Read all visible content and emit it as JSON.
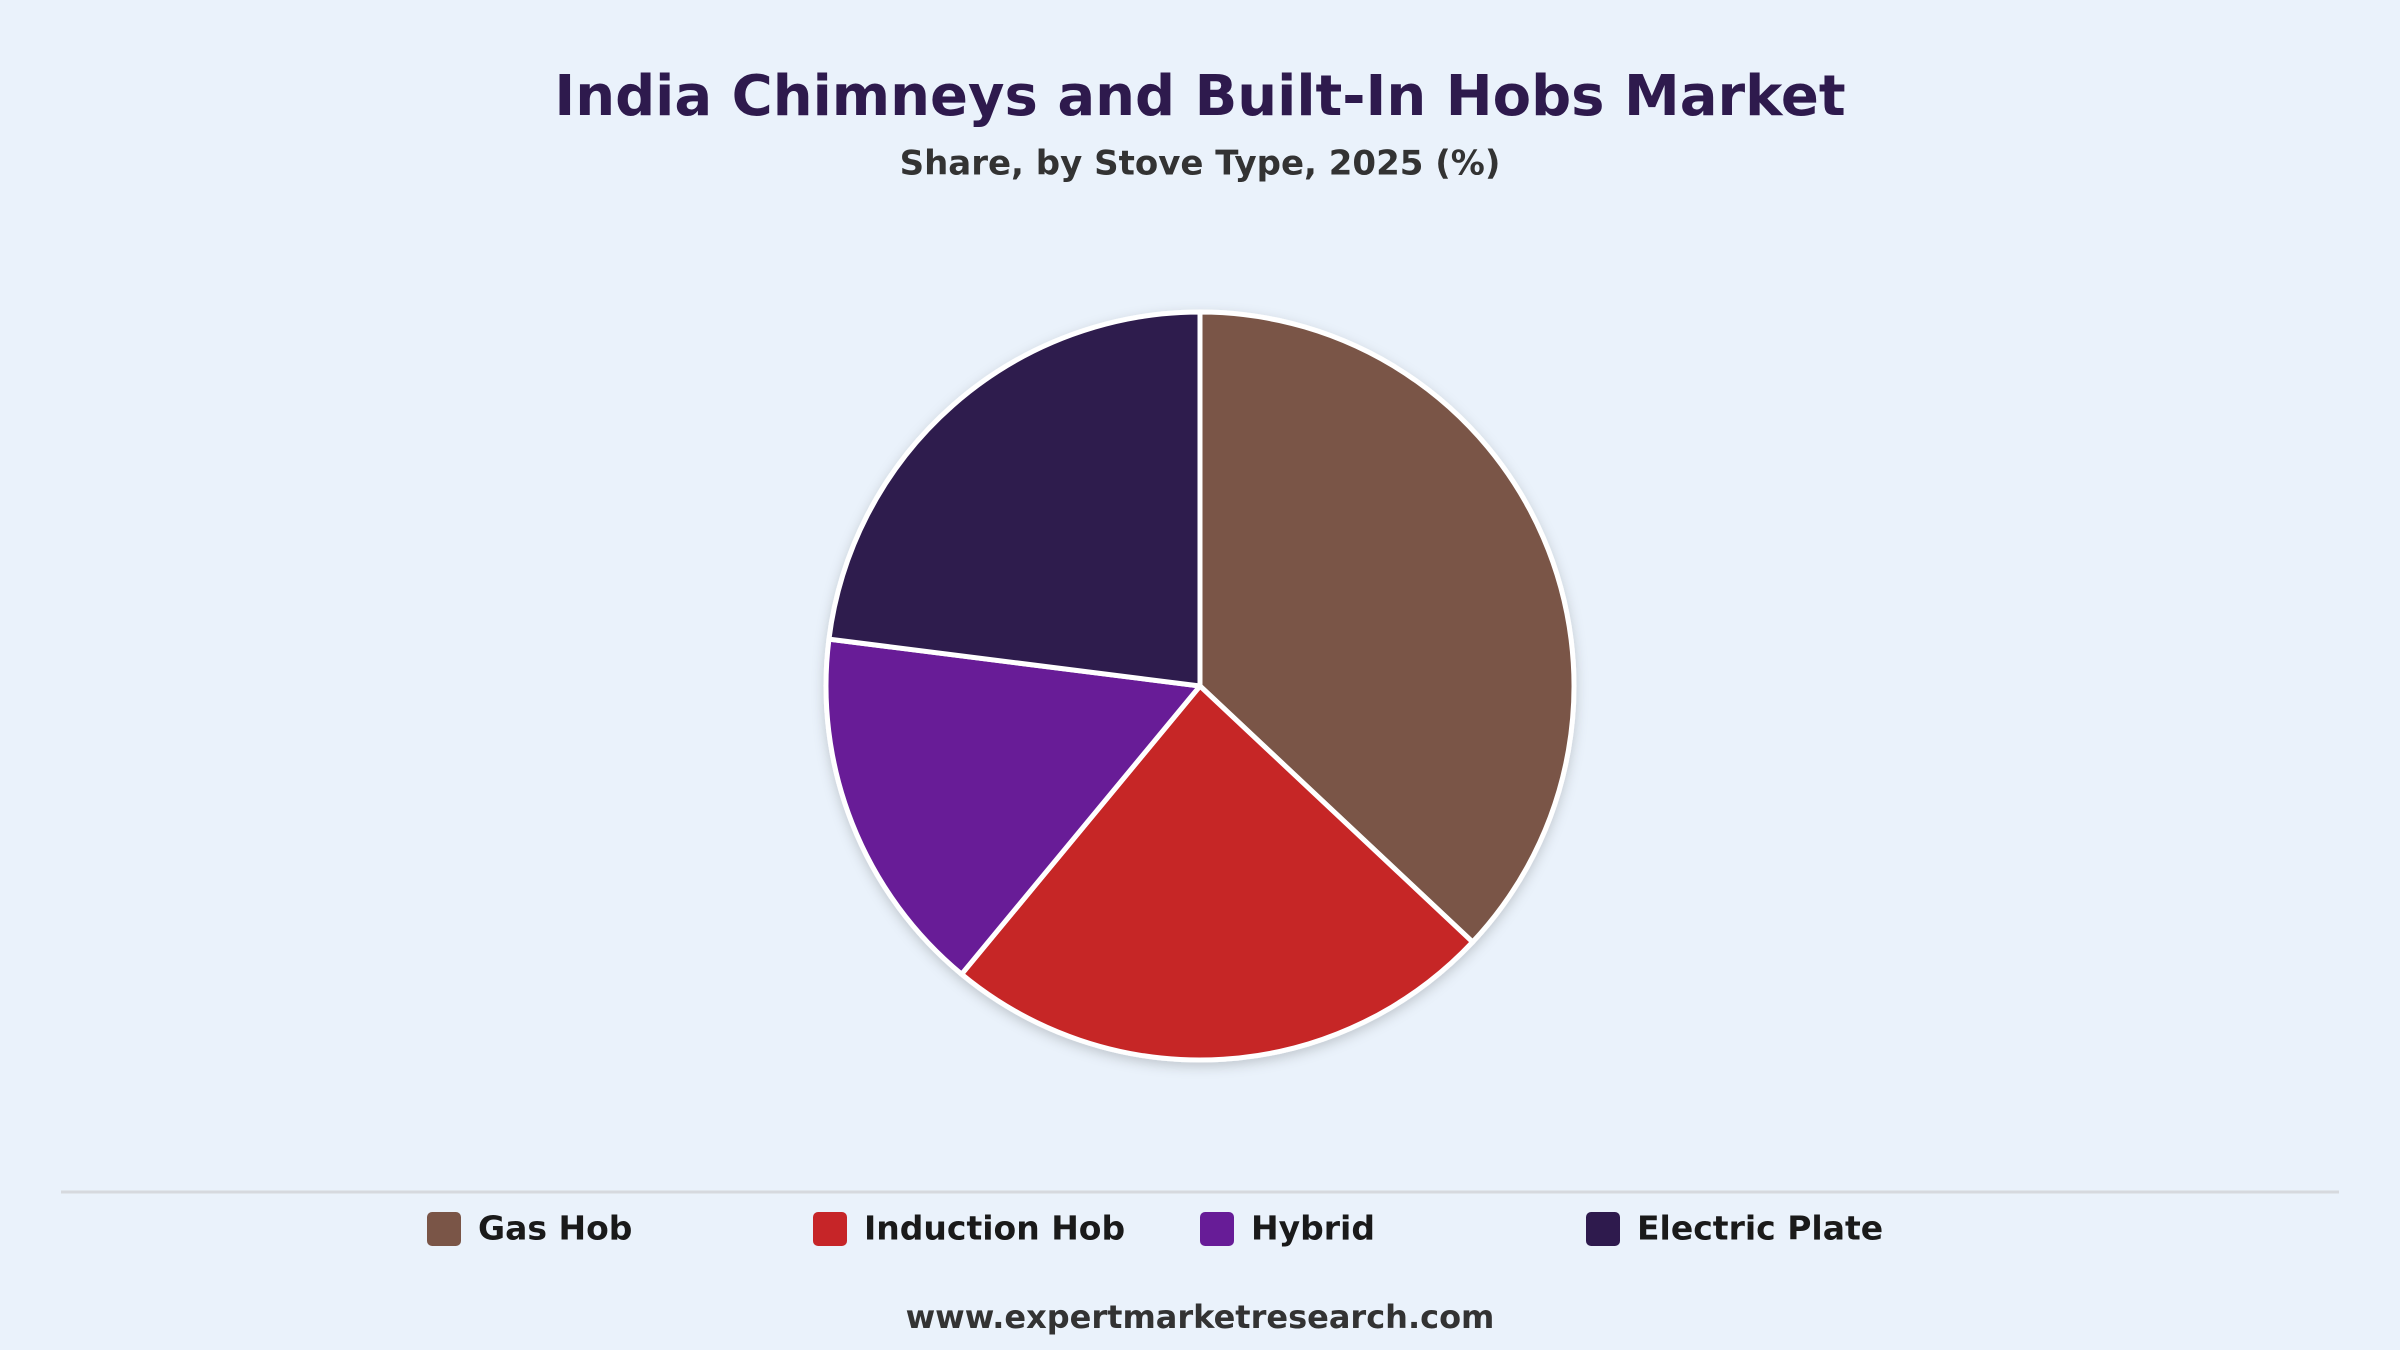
{
  "chart_data": {
    "type": "pie",
    "title": "India Chimneys and Built-In Hobs Market",
    "subtitle": "Share, by Stove Type, 2025 (%)",
    "categories": [
      "Gas Hob",
      "Induction Hob",
      "Hybrid",
      "Electric Plate"
    ],
    "values": [
      37,
      24,
      16,
      23
    ],
    "colors": [
      "#7a5547",
      "#c62528",
      "#671c97",
      "#2e1a4d"
    ]
  },
  "footer": "www.expertmarketresearch.com"
}
